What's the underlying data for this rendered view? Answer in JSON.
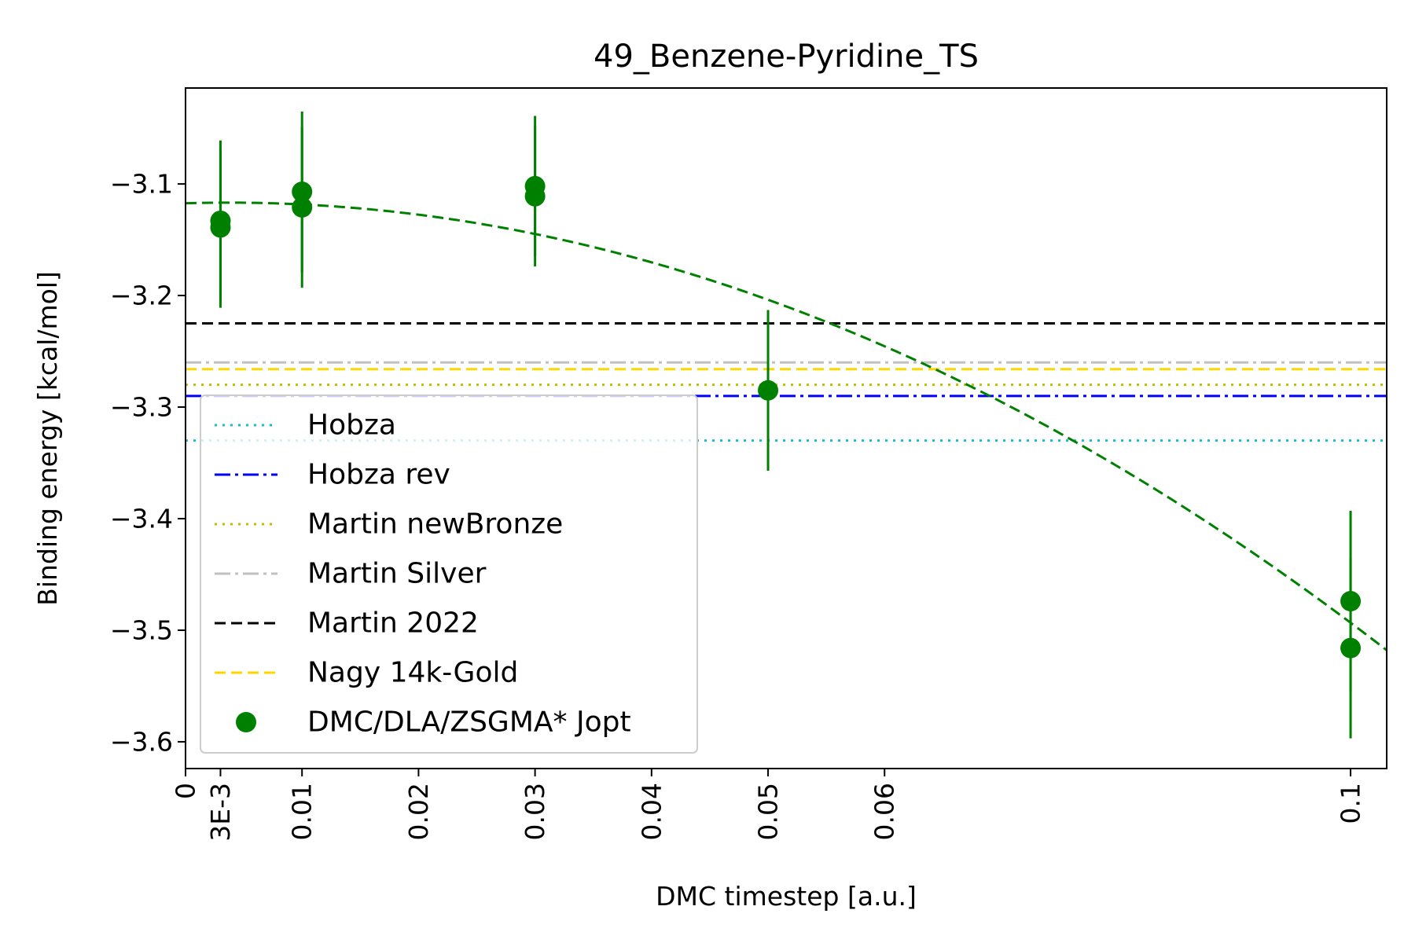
{
  "chart_data": {
    "type": "scatter",
    "title": "49_Benzene-Pyridine_TS",
    "xlabel": "DMC timestep [a.u.]",
    "ylabel": "Binding energy [kcal/mol]",
    "xlim": [
      0,
      0.1031
    ],
    "ylim": [
      -3.624,
      -3.014
    ],
    "grid": false,
    "legend_position": "lower-left",
    "x_ticks": [
      {
        "value": 0,
        "label": "0"
      },
      {
        "value": 0.003,
        "label": "3E-3"
      },
      {
        "value": 0.01,
        "label": "0.01"
      },
      {
        "value": 0.02,
        "label": "0.02"
      },
      {
        "value": 0.03,
        "label": "0.03"
      },
      {
        "value": 0.04,
        "label": "0.04"
      },
      {
        "value": 0.05,
        "label": "0.05"
      },
      {
        "value": 0.06,
        "label": "0.06"
      },
      {
        "value": 0.1,
        "label": "0.1"
      }
    ],
    "y_ticks": [
      {
        "value": -3.1,
        "label": "−3.1"
      },
      {
        "value": -3.2,
        "label": "−3.2"
      },
      {
        "value": -3.3,
        "label": "−3.3"
      },
      {
        "value": -3.4,
        "label": "−3.4"
      },
      {
        "value": -3.5,
        "label": "−3.5"
      },
      {
        "value": -3.6,
        "label": "−3.6"
      }
    ],
    "reference_lines": [
      {
        "name": "Hobza",
        "value": -3.33,
        "color": "#17becf",
        "style": "dotted"
      },
      {
        "name": "Hobza rev",
        "value": -3.29,
        "color": "#0000ff",
        "style": "dashdot"
      },
      {
        "name": "Martin newBronze",
        "value": -3.28,
        "color": "#bfbf00",
        "style": "dotted"
      },
      {
        "name": "Martin Silver",
        "value": -3.26,
        "color": "#c0c0c0",
        "style": "dashdot"
      },
      {
        "name": "Martin 2022",
        "value": -3.225,
        "color": "#000000",
        "style": "dashed"
      },
      {
        "name": "Nagy 14k-Gold",
        "value": -3.266,
        "color": "#ffd700",
        "style": "dashed"
      }
    ],
    "series": [
      {
        "name": "DMC/DLA/ZSGMA* Jopt",
        "color": "#008000",
        "points": [
          {
            "x": 0.003,
            "y": -3.133,
            "err": 0.072
          },
          {
            "x": 0.003,
            "y": -3.139,
            "err": 0.072
          },
          {
            "x": 0.01,
            "y": -3.107,
            "err": 0.072
          },
          {
            "x": 0.01,
            "y": -3.121,
            "err": 0.072
          },
          {
            "x": 0.03,
            "y": -3.102,
            "err": 0.063
          },
          {
            "x": 0.03,
            "y": -3.111,
            "err": 0.063
          },
          {
            "x": 0.05,
            "y": -3.285,
            "err": 0.072
          },
          {
            "x": 0.1,
            "y": -3.474,
            "err": 0.081
          },
          {
            "x": 0.1,
            "y": -3.516,
            "err": 0.081
          }
        ]
      }
    ],
    "fit": {
      "color": "#008000",
      "style": "dashed",
      "a": -3.1173,
      "b": 0.3,
      "c": -40.6
    }
  }
}
